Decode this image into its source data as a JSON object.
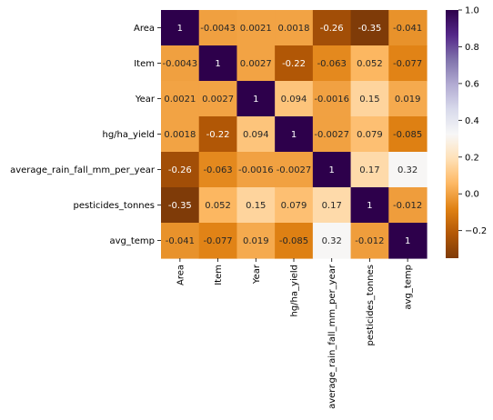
{
  "chart_data": {
    "type": "heatmap",
    "title": "",
    "xlabel": "",
    "ylabel": "",
    "colormap": "PuOr",
    "vmin": -0.35,
    "vmax": 1,
    "rows": [
      "Area",
      "Item",
      "Year",
      "hg/ha_yield",
      "average_rain_fall_mm_per_year",
      "pesticides_tonnes",
      "avg_temp"
    ],
    "columns": [
      "Area",
      "Item",
      "Year",
      "hg/ha_yield",
      "average_rain_fall_mm_per_year",
      "pesticides_tonnes",
      "avg_temp"
    ],
    "values": [
      [
        1,
        -0.0043,
        0.0021,
        0.0018,
        -0.26,
        -0.35,
        -0.041
      ],
      [
        -0.0043,
        1,
        0.0027,
        -0.22,
        -0.063,
        0.052,
        -0.077
      ],
      [
        0.0021,
        0.0027,
        1,
        0.094,
        -0.0016,
        0.15,
        0.019
      ],
      [
        0.0018,
        -0.22,
        0.094,
        1,
        -0.0027,
        0.079,
        -0.085
      ],
      [
        -0.26,
        -0.063,
        -0.0016,
        -0.0027,
        1,
        0.17,
        0.32
      ],
      [
        -0.35,
        0.052,
        0.15,
        0.079,
        0.17,
        1,
        -0.012
      ],
      [
        -0.041,
        -0.077,
        0.019,
        -0.085,
        0.32,
        -0.012,
        1
      ]
    ],
    "colorbar_ticks": [
      -0.2,
      0.0,
      0.2,
      0.4,
      0.6,
      0.8,
      1.0
    ],
    "colorbar_tick_labels": [
      "−0.2",
      "0.0",
      "0.2",
      "0.4",
      "0.6",
      "0.8",
      "1.0"
    ]
  }
}
